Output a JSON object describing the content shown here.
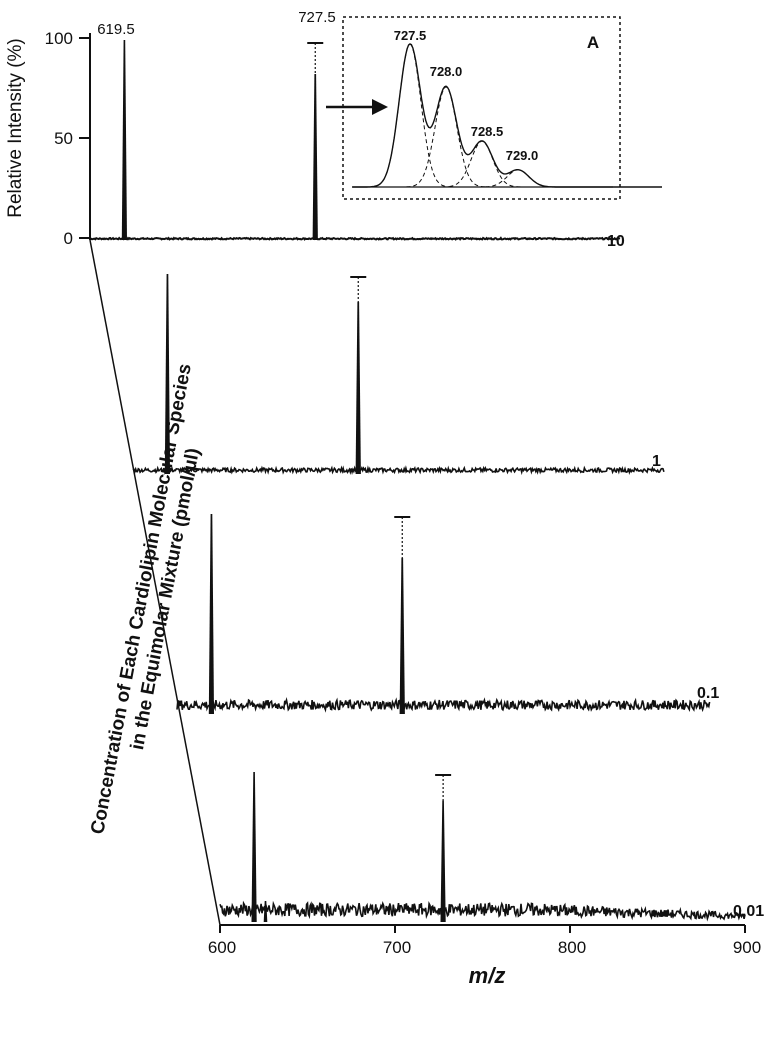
{
  "chart_data": {
    "type": "line",
    "title": "",
    "xlabel": "m/z",
    "ylabel": "Relative Intensity (%)",
    "concentration_axis_label": [
      "Concentration of Each Cardiolipin Molecular Species",
      "in the Equimolar Mixture (pmol/µl)"
    ],
    "xlim": [
      600,
      900
    ],
    "ylim": [
      0,
      100
    ],
    "x_ticks": [
      "600",
      "700",
      "800",
      "900"
    ],
    "y_ticks": [
      "0",
      "50",
      "100"
    ],
    "series": [
      {
        "name": "10",
        "peaks": [
          {
            "x": 619.5,
            "y": 100,
            "label": "619.5"
          },
          {
            "x": 727.5,
            "y": 83,
            "label": "727.5"
          }
        ],
        "noise": 1
      },
      {
        "name": "1",
        "peaks": [
          {
            "x": 619.5,
            "y": 100
          },
          {
            "x": 727.5,
            "y": 86
          }
        ],
        "noise": 3
      },
      {
        "name": "0.1",
        "peaks": [
          {
            "x": 619.5,
            "y": 100
          },
          {
            "x": 727.5,
            "y": 78
          }
        ],
        "noise": 7
      },
      {
        "name": "0.01",
        "peaks": [
          {
            "x": 619.5,
            "y": 100
          },
          {
            "x": 727.5,
            "y": 81
          },
          {
            "x": 626,
            "y": 14
          }
        ],
        "noise": 12
      }
    ],
    "inset": {
      "letter": "A",
      "isotope_peaks": [
        {
          "x": 727.5,
          "label": "727.5",
          "height": 100
        },
        {
          "x": 728.0,
          "label": "728.0",
          "height": 70
        },
        {
          "x": 728.5,
          "label": "728.5",
          "height": 32
        },
        {
          "x": 729.0,
          "label": "729.0",
          "height": 12
        }
      ]
    }
  }
}
